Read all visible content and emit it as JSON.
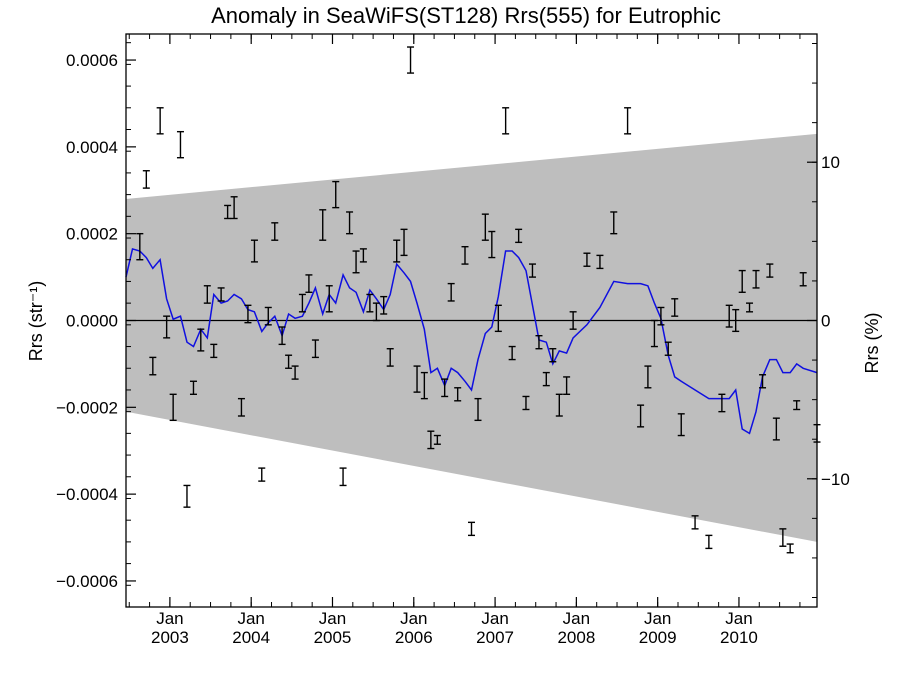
{
  "chart_data": {
    "type": "line",
    "title": "Anomaly in SeaWiFS(ST128) Rrs(555) for Eutrophic",
    "ylabel": "Rrs (str⁻¹)",
    "y2label": "Rrs (%)",
    "xlim": [
      2002.46,
      2010.96
    ],
    "ylim": [
      -0.00066,
      0.00066
    ],
    "y2lim": [
      -18.1,
      18.1
    ],
    "yticks": [
      -0.0006,
      -0.0004,
      -0.0002,
      0.0,
      0.0002,
      0.0004,
      0.0006
    ],
    "ytick_labels": [
      "−0.0006",
      "−0.0004",
      "−0.0002",
      "0.0000",
      "0.0002",
      "0.0004",
      "0.0006"
    ],
    "y2ticks": [
      -10,
      0,
      10
    ],
    "y2tick_labels": [
      "−10",
      "0",
      "10"
    ],
    "xticks": [
      {
        "x": 2003.0,
        "month": "Jan",
        "year": "2003"
      },
      {
        "x": 2004.0,
        "month": "Jan",
        "year": "2004"
      },
      {
        "x": 2005.0,
        "month": "Jan",
        "year": "2005"
      },
      {
        "x": 2006.0,
        "month": "Jan",
        "year": "2006"
      },
      {
        "x": 2007.0,
        "month": "Jan",
        "year": "2007"
      },
      {
        "x": 2008.0,
        "month": "Jan",
        "year": "2008"
      },
      {
        "x": 2009.0,
        "month": "Jan",
        "year": "2009"
      },
      {
        "x": 2010.0,
        "month": "Jan",
        "year": "2010"
      }
    ],
    "band": {
      "x": [
        2002.46,
        2010.96
      ],
      "upper": [
        0.00028,
        0.00043
      ],
      "lower": [
        -0.00021,
        -0.00051
      ],
      "color": "#bebebe"
    },
    "zero_line": 0.0,
    "smoothed_line": {
      "color": "#1010e0",
      "x": [
        2002.46,
        2002.54,
        2002.63,
        2002.71,
        2002.79,
        2002.88,
        2002.96,
        2003.04,
        2003.13,
        2003.21,
        2003.29,
        2003.38,
        2003.46,
        2003.54,
        2003.63,
        2003.71,
        2003.79,
        2003.88,
        2003.96,
        2004.04,
        2004.13,
        2004.21,
        2004.29,
        2004.38,
        2004.46,
        2004.54,
        2004.63,
        2004.71,
        2004.79,
        2004.88,
        2004.96,
        2005.04,
        2005.13,
        2005.21,
        2005.29,
        2005.38,
        2005.46,
        2005.54,
        2005.63,
        2005.71,
        2005.79,
        2005.88,
        2005.96,
        2006.04,
        2006.13,
        2006.21,
        2006.29,
        2006.38,
        2006.46,
        2006.54,
        2006.63,
        2006.71,
        2006.79,
        2006.88,
        2006.96,
        2007.04,
        2007.13,
        2007.21,
        2007.29,
        2007.38,
        2007.46,
        2007.54,
        2007.63,
        2007.71,
        2007.79,
        2007.88,
        2007.96,
        2008.13,
        2008.29,
        2008.46,
        2008.63,
        2008.79,
        2008.88,
        2008.96,
        2009.04,
        2009.13,
        2009.21,
        2009.29,
        2009.46,
        2009.63,
        2009.79,
        2009.88,
        2009.96,
        2010.04,
        2010.13,
        2010.21,
        2010.29,
        2010.38,
        2010.46,
        2010.54,
        2010.63,
        2010.71,
        2010.79,
        2010.96
      ],
      "y": [
        0.0001,
        0.000165,
        0.00016,
        0.000145,
        0.00012,
        0.00014,
        5e-05,
        3e-06,
        1e-05,
        -5e-05,
        -6e-05,
        -2e-05,
        -4e-05,
        6e-05,
        4e-05,
        4.5e-05,
        6e-05,
        5e-05,
        2.5e-05,
        2e-05,
        -2.5e-05,
        -5e-06,
        1e-05,
        -3.5e-05,
        1.5e-05,
        5e-06,
        1e-05,
        4e-05,
        7.5e-05,
        1.5e-05,
        6e-05,
        4e-05,
        0.000105,
        7.5e-05,
        6.5e-05,
        2e-05,
        7e-05,
        5e-05,
        2.5e-05,
        6e-05,
        0.00013,
        0.00011,
        9e-05,
        4e-05,
        -2e-05,
        -0.00012,
        -0.00011,
        -0.00015,
        -0.00011,
        -0.00012,
        -0.00014,
        -0.00016,
        -9e-05,
        -3e-05,
        -1.5e-05,
        5.5e-05,
        0.00016,
        0.00016,
        0.000145,
        0.000115,
        3.5e-05,
        -4.5e-05,
        -5e-05,
        -0.0001,
        -7e-05,
        -7.5e-05,
        -4e-05,
        -1e-05,
        3e-05,
        9e-05,
        8.5e-05,
        8.5e-05,
        8e-05,
        4e-05,
        5e-06,
        -8e-05,
        -0.00013,
        -0.00014,
        -0.00016,
        -0.00018,
        -0.00018,
        -0.00018,
        -0.00016,
        -0.00025,
        -0.00026,
        -0.00021,
        -0.00013,
        -9e-05,
        -9e-05,
        -0.00012,
        -0.00012,
        -0.0001,
        -0.00011,
        -0.00012
      ]
    },
    "error_bars": {
      "color": "#000000",
      "x": [
        2002.63,
        2002.71,
        2002.79,
        2002.88,
        2002.96,
        2003.04,
        2003.13,
        2003.21,
        2003.29,
        2003.38,
        2003.46,
        2003.54,
        2003.63,
        2003.71,
        2003.79,
        2003.88,
        2003.96,
        2004.04,
        2004.13,
        2004.21,
        2004.29,
        2004.38,
        2004.46,
        2004.54,
        2004.63,
        2004.71,
        2004.79,
        2004.88,
        2004.96,
        2005.04,
        2005.13,
        2005.21,
        2005.29,
        2005.38,
        2005.46,
        2005.54,
        2005.63,
        2005.71,
        2005.79,
        2005.88,
        2005.96,
        2006.04,
        2006.13,
        2006.21,
        2006.29,
        2006.38,
        2006.46,
        2006.54,
        2006.63,
        2006.71,
        2006.79,
        2006.88,
        2006.96,
        2007.04,
        2007.13,
        2007.21,
        2007.29,
        2007.38,
        2007.46,
        2007.54,
        2007.63,
        2007.71,
        2007.79,
        2007.88,
        2007.96,
        2008.13,
        2008.29,
        2008.46,
        2008.63,
        2008.79,
        2008.88,
        2008.96,
        2009.04,
        2009.13,
        2009.21,
        2009.29,
        2009.46,
        2009.63,
        2009.79,
        2009.88,
        2009.96,
        2010.04,
        2010.13,
        2010.21,
        2010.29,
        2010.38,
        2010.46,
        2010.54,
        2010.63,
        2010.71,
        2010.79,
        2010.96
      ],
      "y": [
        0.00017,
        0.000325,
        -0.000105,
        0.00046,
        -1.5e-05,
        -0.0002,
        0.000405,
        -0.000405,
        -0.000155,
        -4.5e-05,
        6e-05,
        -7e-05,
        6e-05,
        0.00025,
        0.00026,
        -0.0002,
        1.5e-05,
        0.00016,
        -0.000355,
        1e-05,
        0.000205,
        -3.5e-05,
        -9.5e-05,
        -0.00012,
        4e-05,
        8.5e-05,
        -6.5e-05,
        0.00022,
        5e-05,
        0.00029,
        -0.00036,
        0.000225,
        0.000135,
        0.00015,
        4e-05,
        2e-05,
        3.5e-05,
        -8.5e-05,
        0.00016,
        0.00018,
        0.0006,
        -0.000135,
        -0.00015,
        -0.000275,
        -0.000275,
        -0.000155,
        6.5e-05,
        -0.00017,
        0.00015,
        -0.00048,
        -0.000205,
        0.000215,
        0.000175,
        5e-06,
        0.00046,
        -7.5e-05,
        0.000195,
        -0.00019,
        0.000115,
        -5e-05,
        -0.000135,
        -8e-05,
        -0.000195,
        -0.00015,
        0.0,
        0.00014,
        0.000135,
        0.000225,
        0.00046,
        -0.00022,
        -0.00013,
        -3e-05,
        1e-05,
        -6.5e-05,
        3e-05,
        -0.00024,
        -0.000465,
        -0.00051,
        -0.00019,
        1e-05,
        0.0,
        9e-05,
        3e-05,
        9.5e-05,
        -0.00014,
        0.000115,
        -0.00025,
        -0.0005,
        -0.000525,
        -0.000195,
        9.5e-05,
        -0.00026
      ],
      "err": [
        3e-05,
        2e-05,
        2e-05,
        3e-05,
        2.5e-05,
        3e-05,
        3e-05,
        2.5e-05,
        1.5e-05,
        2.5e-05,
        2e-05,
        1.5e-05,
        1.5e-05,
        1.5e-05,
        2.5e-05,
        2e-05,
        2e-05,
        2.5e-05,
        1.5e-05,
        2e-05,
        2e-05,
        2e-05,
        1.5e-05,
        1.5e-05,
        2e-05,
        2e-05,
        2e-05,
        3.5e-05,
        3e-05,
        3e-05,
        2e-05,
        2.5e-05,
        2.5e-05,
        1.5e-05,
        2e-05,
        2e-05,
        2e-05,
        2e-05,
        2.5e-05,
        3e-05,
        3e-05,
        3e-05,
        3e-05,
        2e-05,
        1e-05,
        2e-05,
        2e-05,
        1.5e-05,
        2e-05,
        1.5e-05,
        2.5e-05,
        3e-05,
        3e-05,
        3e-05,
        3e-05,
        1.5e-05,
        1.5e-05,
        1.5e-05,
        1.5e-05,
        1.5e-05,
        1.5e-05,
        1.5e-05,
        2.5e-05,
        2e-05,
        2e-05,
        1.5e-05,
        1.5e-05,
        2.5e-05,
        3e-05,
        2.5e-05,
        2.5e-05,
        3e-05,
        2e-05,
        1.5e-05,
        2e-05,
        2.5e-05,
        1.5e-05,
        1.5e-05,
        2e-05,
        2.5e-05,
        2.5e-05,
        2.5e-05,
        1e-05,
        2e-05,
        1.5e-05,
        1.5e-05,
        2.5e-05,
        2e-05,
        1e-05,
        1e-05,
        1.5e-05,
        2e-05
      ]
    },
    "grid": false,
    "legend": "none"
  }
}
